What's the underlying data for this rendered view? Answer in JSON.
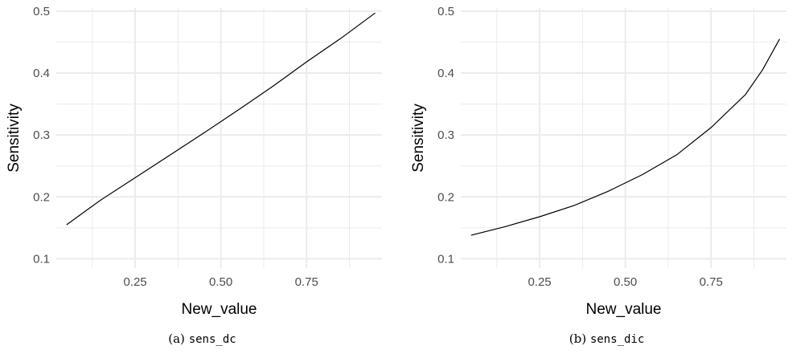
{
  "chart_data": [
    {
      "id": "a",
      "type": "line",
      "caption_prefix": "(a)",
      "caption_code": "sens_dc",
      "xlabel": "New_value",
      "ylabel": "Sensitivity",
      "xlim": [
        0.02,
        0.97
      ],
      "ylim": [
        0.085,
        0.505
      ],
      "xticks": [
        0.25,
        0.5,
        0.75
      ],
      "xtick_labels": [
        "0.25",
        "0.50",
        "0.75"
      ],
      "yticks": [
        0.1,
        0.2,
        0.3,
        0.4,
        0.5
      ],
      "ytick_labels": [
        "0.1",
        "0.2",
        "0.3",
        "0.4",
        "0.5"
      ],
      "grid": true,
      "line_color": "#000000",
      "grid_color": "#ebebeb",
      "series": [
        {
          "x": [
            0.05,
            0.15,
            0.25,
            0.35,
            0.45,
            0.55,
            0.65,
            0.75,
            0.85,
            0.95
          ],
          "values": [
            0.155,
            0.195,
            0.231,
            0.267,
            0.303,
            0.34,
            0.378,
            0.418,
            0.456,
            0.497
          ]
        }
      ]
    },
    {
      "id": "b",
      "type": "line",
      "caption_prefix": "(b)",
      "caption_code": "sens_dic",
      "xlabel": "New_value",
      "ylabel": "Sensitivity",
      "xlim": [
        0.02,
        0.97
      ],
      "ylim": [
        0.085,
        0.505
      ],
      "xticks": [
        0.25,
        0.5,
        0.75
      ],
      "xtick_labels": [
        "0.25",
        "0.50",
        "0.75"
      ],
      "yticks": [
        0.1,
        0.2,
        0.3,
        0.4,
        0.5
      ],
      "ytick_labels": [
        "0.1",
        "0.2",
        "0.3",
        "0.4",
        "0.5"
      ],
      "grid": true,
      "line_color": "#000000",
      "grid_color": "#ebebeb",
      "series": [
        {
          "x": [
            0.05,
            0.15,
            0.25,
            0.35,
            0.45,
            0.55,
            0.65,
            0.75,
            0.85,
            0.9,
            0.95
          ],
          "values": [
            0.138,
            0.152,
            0.168,
            0.186,
            0.209,
            0.236,
            0.268,
            0.312,
            0.365,
            0.405,
            0.455
          ]
        }
      ]
    }
  ]
}
